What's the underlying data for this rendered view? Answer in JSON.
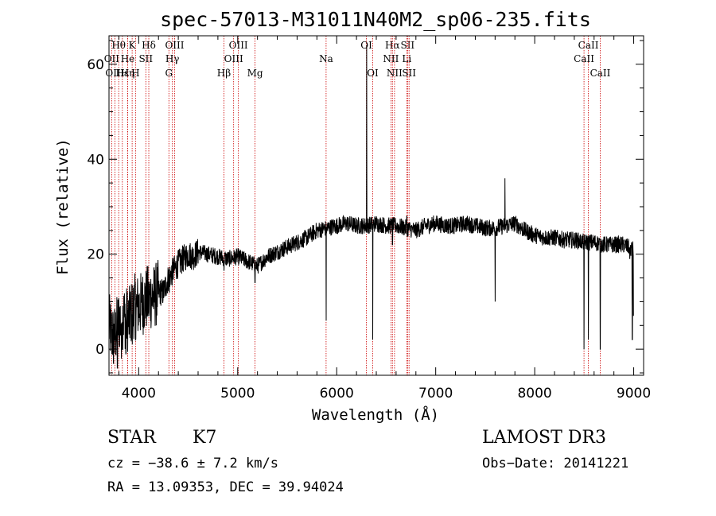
{
  "chart_data": {
    "type": "line",
    "title": "spec-57013-M31011N40M2_sp06-235.fits",
    "xlabel": "Wavelength (Å)",
    "ylabel": "Flux (relative)",
    "xlim": [
      3700,
      9100
    ],
    "ylim": [
      -5.5,
      66
    ],
    "x_major_ticks": [
      4000,
      5000,
      6000,
      7000,
      8000,
      9000
    ],
    "x_tick_labels": [
      "4000",
      "5000",
      "6000",
      "7000",
      "8000",
      "9000"
    ],
    "y_major_ticks": [
      0,
      20,
      40,
      60
    ],
    "y_tick_labels": [
      "0",
      "20",
      "40",
      "60"
    ],
    "spectrum_anchors": [
      [
        3700,
        5
      ],
      [
        3750,
        2
      ],
      [
        3800,
        6
      ],
      [
        3850,
        7
      ],
      [
        3900,
        6
      ],
      [
        3950,
        9
      ],
      [
        4000,
        9
      ],
      [
        4050,
        10
      ],
      [
        4100,
        11
      ],
      [
        4150,
        11
      ],
      [
        4200,
        12
      ],
      [
        4250,
        12
      ],
      [
        4300,
        15
      ],
      [
        4350,
        16.5
      ],
      [
        4400,
        18
      ],
      [
        4450,
        19
      ],
      [
        4500,
        20
      ],
      [
        4550,
        19.5
      ],
      [
        4600,
        20.5
      ],
      [
        4700,
        20
      ],
      [
        4800,
        19.5
      ],
      [
        4900,
        19
      ],
      [
        5000,
        19.5
      ],
      [
        5100,
        18.5
      ],
      [
        5200,
        17.5
      ],
      [
        5300,
        19.5
      ],
      [
        5400,
        20.5
      ],
      [
        5500,
        21.5
      ],
      [
        5600,
        22.5
      ],
      [
        5700,
        23.5
      ],
      [
        5800,
        25
      ],
      [
        5900,
        25.5
      ],
      [
        6000,
        26
      ],
      [
        6100,
        26.5
      ],
      [
        6200,
        26
      ],
      [
        6300,
        26
      ],
      [
        6400,
        26.5
      ],
      [
        6500,
        26
      ],
      [
        6600,
        26
      ],
      [
        6700,
        25.5
      ],
      [
        6800,
        25
      ],
      [
        6900,
        26
      ],
      [
        7000,
        26.5
      ],
      [
        7100,
        26
      ],
      [
        7200,
        26
      ],
      [
        7300,
        26.5
      ],
      [
        7400,
        26
      ],
      [
        7500,
        25.5
      ],
      [
        7600,
        25.5
      ],
      [
        7700,
        26
      ],
      [
        7800,
        26.5
      ],
      [
        7900,
        25
      ],
      [
        8000,
        24
      ],
      [
        8100,
        23.5
      ],
      [
        8200,
        23.5
      ],
      [
        8300,
        23
      ],
      [
        8400,
        23
      ],
      [
        8500,
        22.5
      ],
      [
        8600,
        22.5
      ],
      [
        8700,
        22
      ],
      [
        8800,
        22
      ],
      [
        8900,
        22
      ],
      [
        8990,
        21
      ]
    ],
    "spectrum_features": [
      [
        3745,
        -3
      ],
      [
        3785,
        -4
      ],
      [
        3825,
        -2
      ],
      [
        3870,
        -1
      ],
      [
        3935,
        1
      ],
      [
        3968,
        2
      ],
      [
        4101,
        7
      ],
      [
        4308,
        12
      ],
      [
        4861,
        16.5
      ],
      [
        5175,
        14
      ],
      [
        5893,
        6
      ],
      [
        6302,
        64
      ],
      [
        6364,
        2
      ],
      [
        6563,
        22
      ],
      [
        6708,
        28
      ],
      [
        7600,
        10
      ],
      [
        7700,
        36
      ],
      [
        8498,
        0
      ],
      [
        8542,
        2
      ],
      [
        8662,
        0
      ],
      [
        8960,
        19
      ],
      [
        8985,
        2
      ],
      [
        8998,
        7
      ]
    ],
    "lines": [
      {
        "name": "Hθ",
        "wavelength": 3798,
        "row": 1
      },
      {
        "name": "OII",
        "wavelength": 3727,
        "row": 2
      },
      {
        "name": "OIII",
        "wavelength": 3760,
        "row": 3
      },
      {
        "name": "Hε",
        "wavelength": 3835,
        "row": 3
      },
      {
        "name": "He",
        "wavelength": 3889,
        "row": 2
      },
      {
        "name": "K",
        "wavelength": 3934,
        "row": 1
      },
      {
        "name": "Hη",
        "wavelength": 3889,
        "row": 3
      },
      {
        "name": "H",
        "wavelength": 3968,
        "row": 3
      },
      {
        "name": "SII",
        "wavelength": 4072,
        "row": 2
      },
      {
        "name": "Hδ",
        "wavelength": 4102,
        "row": 1
      },
      {
        "name": "OIII",
        "wavelength": 4363,
        "row": 1
      },
      {
        "name": "Hγ",
        "wavelength": 4340,
        "row": 2
      },
      {
        "name": "G",
        "wavelength": 4305,
        "row": 3
      },
      {
        "name": "Hβ",
        "wavelength": 4861,
        "row": 3
      },
      {
        "name": "OIII",
        "wavelength": 5007,
        "row": 1
      },
      {
        "name": "OIII",
        "wavelength": 4959,
        "row": 2
      },
      {
        "name": "Mg",
        "wavelength": 5175,
        "row": 3
      },
      {
        "name": "Na",
        "wavelength": 5893,
        "row": 2
      },
      {
        "name": "OI",
        "wavelength": 6300,
        "row": 1
      },
      {
        "name": "OI",
        "wavelength": 6364,
        "row": 3
      },
      {
        "name": "Hα",
        "wavelength": 6563,
        "row": 1
      },
      {
        "name": "SII",
        "wavelength": 6716,
        "row": 1
      },
      {
        "name": "NII",
        "wavelength": 6548,
        "row": 2
      },
      {
        "name": "Li",
        "wavelength": 6708,
        "row": 2
      },
      {
        "name": "NII",
        "wavelength": 6584,
        "row": 3
      },
      {
        "name": "SII",
        "wavelength": 6731,
        "row": 3
      },
      {
        "name": "CaII",
        "wavelength": 8542,
        "row": 1
      },
      {
        "name": "CaII",
        "wavelength": 8498,
        "row": 2
      },
      {
        "name": "CaII",
        "wavelength": 8662,
        "row": 3
      }
    ],
    "line_color": "#cc0000",
    "spectrum_color": "#000000"
  },
  "info": {
    "class": "STAR",
    "subclass": "K7",
    "survey": "LAMOST DR3",
    "cz": "cz = −38.6 ± 7.2 km/s",
    "obs_date": "Obs−Date: 20141221",
    "coords": "RA =  13.09353, DEC =  39.94024"
  }
}
